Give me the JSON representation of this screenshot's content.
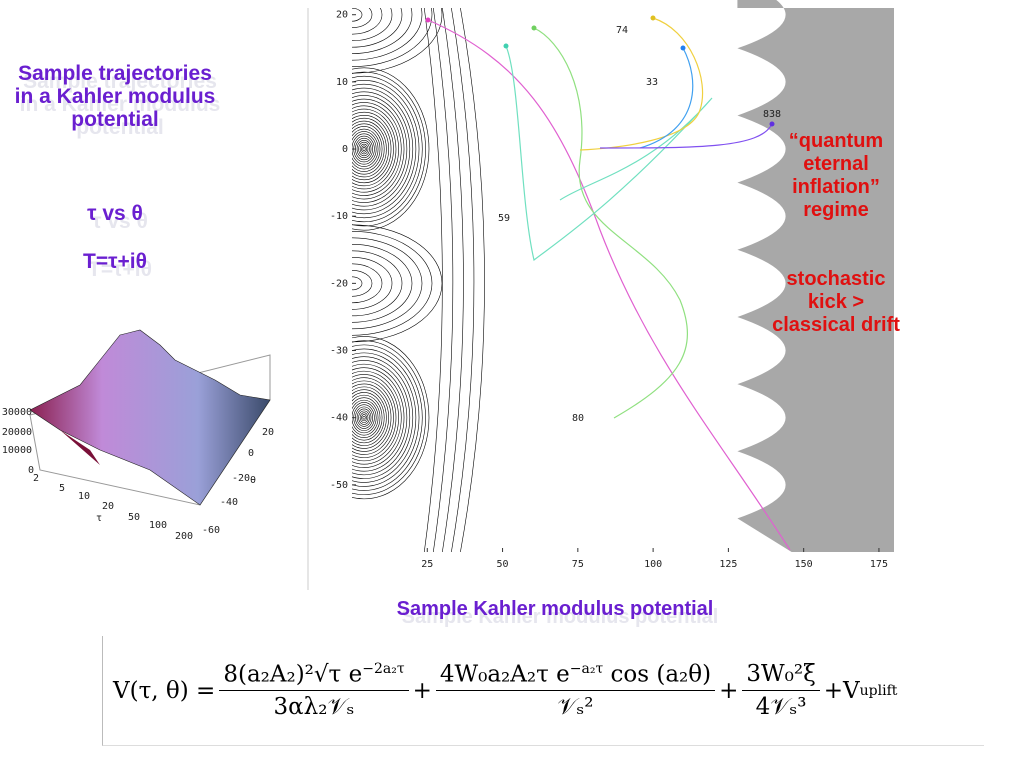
{
  "left_text": {
    "title": "Sample trajectories in a Kahler modulus potential",
    "line2": "τ vs θ",
    "line3": "T=τ+iθ"
  },
  "right_text": {
    "regime": "“quantum eternal inflation” regime",
    "condition": "stochastic kick > classical drift"
  },
  "plot": {
    "xlim": [
      0,
      180
    ],
    "ylim": [
      -60,
      21
    ],
    "xticks": [
      25,
      50,
      75,
      100,
      125,
      150,
      175
    ],
    "yticks": [
      20,
      10,
      0,
      -10,
      -20,
      -30,
      -40,
      -50
    ],
    "trajectory_labels": [
      "74",
      "33",
      "838",
      "59",
      "80"
    ]
  },
  "surface_plot": {
    "z_labels": [
      "30000",
      "20000",
      "10000",
      "0"
    ],
    "tau_labels": [
      "2",
      "5",
      "10",
      "20",
      "50",
      "100",
      "200"
    ],
    "tau_symbol": "τ",
    "theta_labels": [
      "20",
      "0",
      "-20",
      "-40",
      "-60"
    ],
    "theta_symbol": "θ"
  },
  "caption": "Sample Kahler modulus potential",
  "formula": {
    "lhs": "V(τ, θ) =",
    "term1_num": "8(a₂A₂)²√τ e",
    "term1_num_exp": "−2a₂τ",
    "term1_den": "3αλ₂𝒱ₛ",
    "plus1": "+",
    "term2_num": "4W₀a₂A₂τ e",
    "term2_num_exp": "−a₂τ",
    "term2_num_tail": " cos (a₂θ)",
    "term2_den": "𝒱ₛ²",
    "plus2": "+",
    "term3_num": "3W₀²ξ",
    "term3_den": "4𝒱ₛ³",
    "plus3": "+",
    "tail": "V",
    "tail_sub": "uplift"
  }
}
